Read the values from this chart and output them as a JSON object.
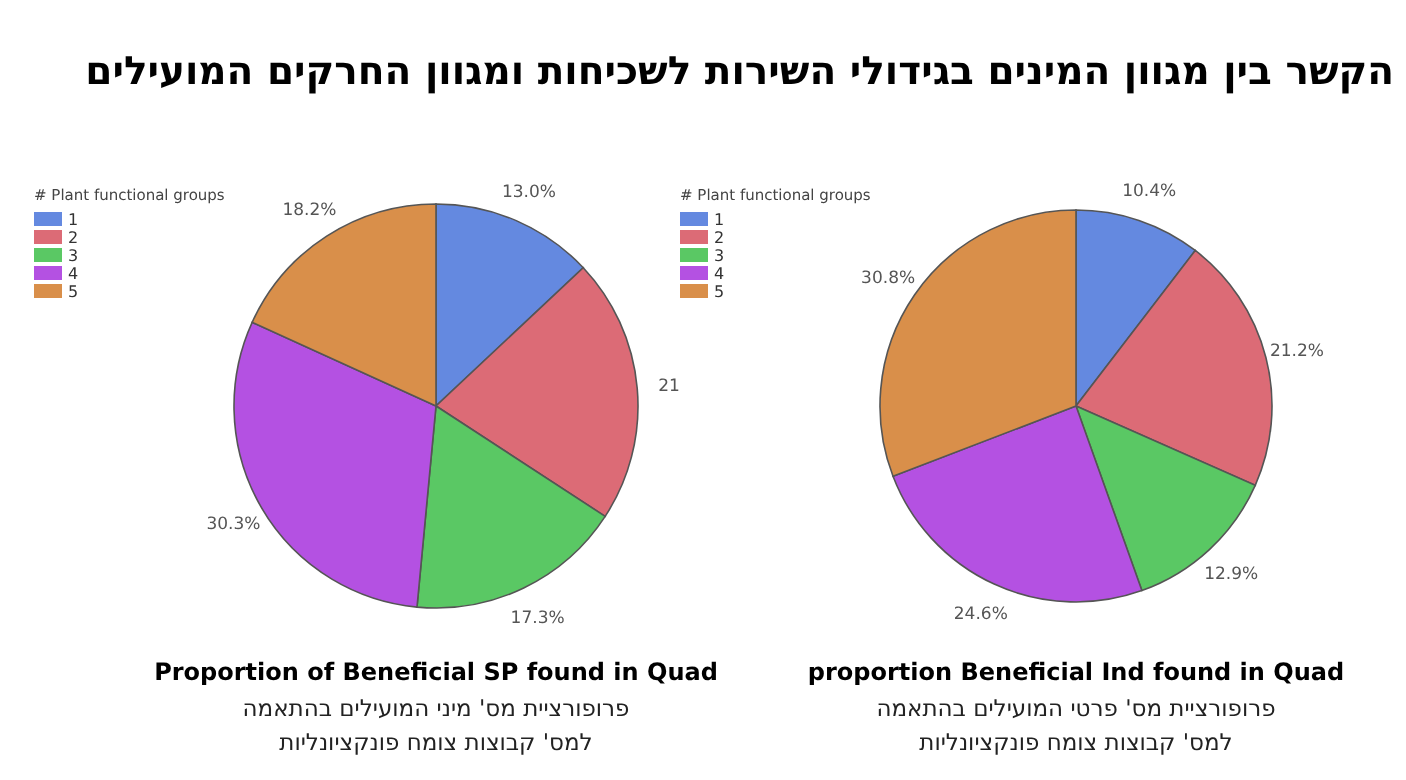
{
  "chart_data": [
    {
      "type": "pie",
      "title": "Proportion of Beneficial SP found in Quad",
      "subtitle": "פרופורציית מס' מיני המועילים בהתאמה\nלמס' קבוצות צומח פונקציונליות",
      "annotations": [
        "הקשר בין מגוון המינים בגידולי השירות לשכיחות ומגוון החרקים המועילים"
      ],
      "legend_title": "# Plant functional groups",
      "legend": "top left",
      "categories": [
        "1",
        "2",
        "3",
        "4",
        "5"
      ],
      "values": [
        13.0,
        21.2,
        17.3,
        30.3,
        18.2
      ],
      "value_labels": [
        "13.0%",
        "21",
        "17.3%",
        "30.3%",
        "18.2%"
      ],
      "colors": [
        "#6489e0",
        "#dc6b76",
        "#5ac864",
        "#b451e2",
        "#d98f4a"
      ]
    },
    {
      "type": "pie",
      "title": "proportion Beneficial Ind found in Quad",
      "subtitle": "פרופורציית מס' פרטי המועילים בהתאמה\nלמס' קבוצות צומח פונקציונליות",
      "legend_title": "# Plant functional groups",
      "legend": "top left",
      "categories": [
        "1",
        "2",
        "3",
        "4",
        "5"
      ],
      "values": [
        10.4,
        21.2,
        12.9,
        24.6,
        30.8
      ],
      "value_labels": [
        "10.4%",
        "21.2%",
        "12.9%",
        "24.6%",
        "30.8%"
      ],
      "colors": [
        "#6489e0",
        "#dc6b76",
        "#5ac864",
        "#b451e2",
        "#d98f4a"
      ]
    }
  ]
}
